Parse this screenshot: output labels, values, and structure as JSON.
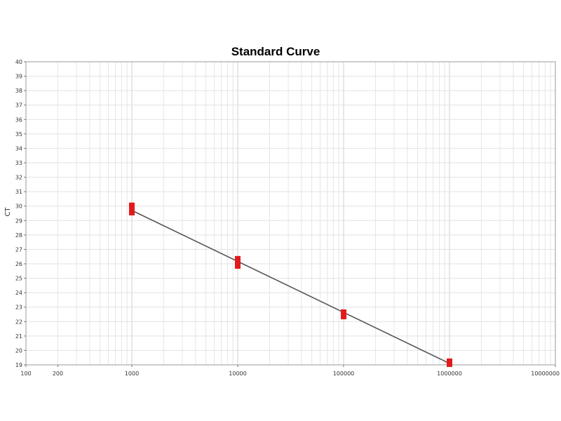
{
  "chart_data": {
    "type": "scatter",
    "title": "Standard Curve",
    "xlabel": "",
    "ylabel": "CT",
    "x_scale": "log",
    "xlim": [
      100,
      10000000
    ],
    "ylim": [
      19,
      40
    ],
    "grid": true,
    "legend": "none",
    "x_tick_labels": [
      "100",
      "200",
      "1000",
      "10000",
      "100000",
      "1000000",
      "10000000"
    ],
    "x_tick_values": [
      100,
      200,
      1000,
      10000,
      100000,
      1000000,
      10000000
    ],
    "y_ticks": [
      19,
      20,
      21,
      22,
      23,
      24,
      25,
      26,
      27,
      28,
      29,
      30,
      31,
      32,
      33,
      34,
      35,
      36,
      37,
      38,
      39,
      40
    ],
    "series": [
      {
        "points": [
          {
            "x": 1000,
            "y": 30.0
          },
          {
            "x": 1000,
            "y": 29.6
          },
          {
            "x": 10000,
            "y": 26.3
          },
          {
            "x": 10000,
            "y": 25.9
          },
          {
            "x": 100000,
            "y": 22.6
          },
          {
            "x": 100000,
            "y": 22.4
          },
          {
            "x": 1000000,
            "y": 19.2
          },
          {
            "x": 1000000,
            "y": 19.1
          }
        ],
        "color": "#e31a1c"
      }
    ],
    "fit_line": {
      "x": [
        1000,
        1000000
      ],
      "y": [
        29.7,
        19.1
      ],
      "color": "#555555"
    }
  }
}
